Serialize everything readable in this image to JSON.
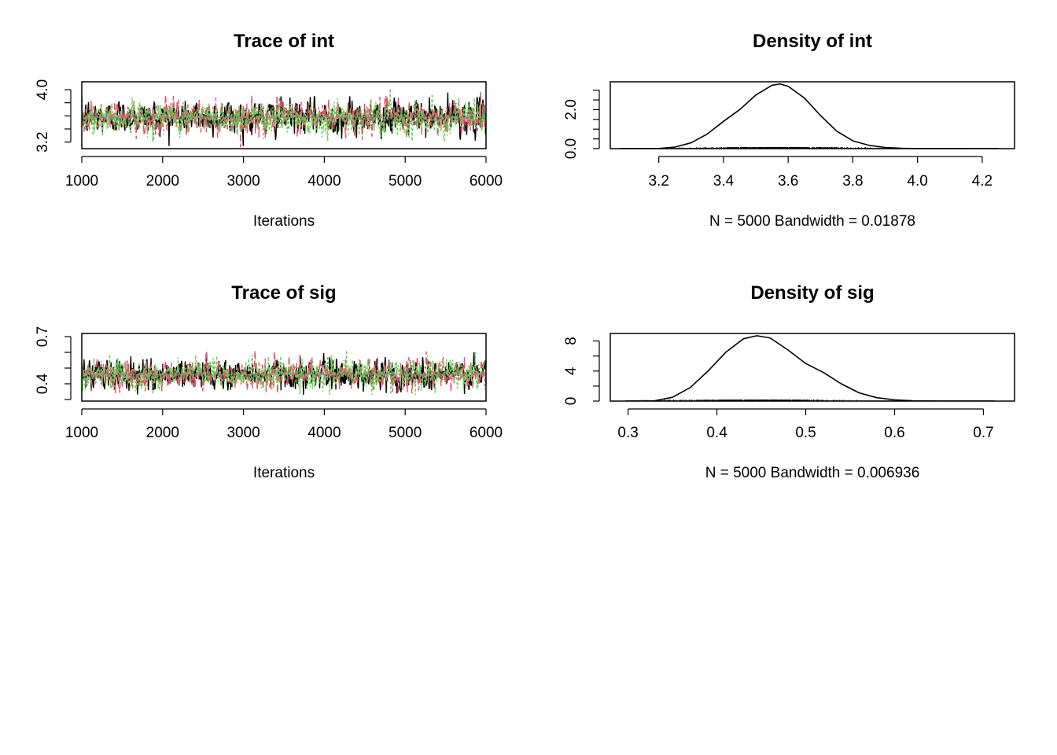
{
  "colors": {
    "chain1": "#000000",
    "chain2": "#DF536B",
    "chain3": "#61D04F",
    "rug": "#000000",
    "rug_range": "#808080"
  },
  "chart_data": [
    {
      "type": "line",
      "title": "Trace of int",
      "xlabel": "Iterations",
      "ylabel": "",
      "xlim": [
        1000,
        6000
      ],
      "ylim": [
        3.1,
        4.12
      ],
      "x_ticks": [
        1000,
        2000,
        3000,
        4000,
        5000,
        6000
      ],
      "x_tick_labels": [
        "1000",
        "2000",
        "3000",
        "4000",
        "5000",
        "6000"
      ],
      "y_ticks": [
        3.2,
        3.4,
        3.6,
        3.8,
        4.0
      ],
      "y_tick_labels": [
        "3.2",
        "",
        "",
        "",
        "4.0"
      ],
      "n_iterations": 5000,
      "chains": 3,
      "series": [
        {
          "x_start": 1000,
          "x_end": 6000,
          "mean": 3.58,
          "sd": 0.12,
          "min": 3.14,
          "max": 4.1
        },
        {
          "x_start": 1000,
          "x_end": 6000,
          "mean": 3.58,
          "sd": 0.12,
          "min": 3.12,
          "max": 3.98
        },
        {
          "x_start": 1000,
          "x_end": 6000,
          "mean": 3.58,
          "sd": 0.12,
          "min": 3.2,
          "max": 4.12
        }
      ]
    },
    {
      "type": "line",
      "title": "Density of int",
      "xlabel": "N = 5000   Bandwidth = 0.01878",
      "ylabel": "",
      "xlim": [
        3.05,
        4.3
      ],
      "ylim": [
        0,
        3.43
      ],
      "x_ticks": [
        3.2,
        3.4,
        3.6,
        3.8,
        4.0,
        4.2
      ],
      "x_tick_labels": [
        "3.2",
        "3.4",
        "3.6",
        "3.8",
        "4.0",
        "4.2"
      ],
      "y_ticks": [
        0,
        0.5,
        1.0,
        1.5,
        2.0,
        2.5,
        3.0
      ],
      "y_tick_labels": [
        "0.0",
        "",
        "",
        "",
        "2.0",
        "",
        ""
      ],
      "rug_range": [
        3.08,
        4.25
      ],
      "x": [
        3.08,
        3.2,
        3.25,
        3.3,
        3.35,
        3.4,
        3.45,
        3.5,
        3.55,
        3.575,
        3.6,
        3.65,
        3.7,
        3.75,
        3.8,
        3.85,
        3.9,
        3.95,
        4.0,
        4.25
      ],
      "y": [
        0.0,
        0.01,
        0.08,
        0.3,
        0.75,
        1.4,
        2.0,
        2.75,
        3.25,
        3.32,
        3.2,
        2.6,
        1.7,
        0.9,
        0.4,
        0.17,
        0.06,
        0.02,
        0.005,
        0.0
      ]
    },
    {
      "type": "line",
      "title": "Trace of sig",
      "xlabel": "Iterations",
      "ylabel": "",
      "xlim": [
        1000,
        6000
      ],
      "ylim": [
        0.29,
        0.72
      ],
      "x_ticks": [
        1000,
        2000,
        3000,
        4000,
        5000,
        6000
      ],
      "x_tick_labels": [
        "1000",
        "2000",
        "3000",
        "4000",
        "5000",
        "6000"
      ],
      "y_ticks": [
        0.3,
        0.4,
        0.5,
        0.6,
        0.7
      ],
      "y_tick_labels": [
        "",
        "0.4",
        "",
        "",
        "0.7"
      ],
      "n_iterations": 5000,
      "chains": 3,
      "series": [
        {
          "x_start": 1000,
          "x_end": 6000,
          "mean": 0.46,
          "sd": 0.045,
          "min": 0.33,
          "max": 0.66
        },
        {
          "x_start": 1000,
          "x_end": 6000,
          "mean": 0.46,
          "sd": 0.045,
          "min": 0.34,
          "max": 0.67
        },
        {
          "x_start": 1000,
          "x_end": 6000,
          "mean": 0.46,
          "sd": 0.045,
          "min": 0.33,
          "max": 0.69
        }
      ]
    },
    {
      "type": "line",
      "title": "Density of sig",
      "xlabel": "N = 5000   Bandwidth = 0.006936",
      "ylabel": "",
      "xlim": [
        0.28,
        0.735
      ],
      "ylim": [
        0,
        9.0
      ],
      "x_ticks": [
        0.3,
        0.4,
        0.5,
        0.6,
        0.7
      ],
      "x_tick_labels": [
        "0.3",
        "0.4",
        "0.5",
        "0.6",
        "0.7"
      ],
      "y_ticks": [
        0,
        2,
        4,
        6,
        8
      ],
      "y_tick_labels": [
        "0",
        "",
        "4",
        "",
        "8"
      ],
      "rug_range": [
        0.297,
        0.713
      ],
      "x": [
        0.297,
        0.33,
        0.35,
        0.37,
        0.39,
        0.41,
        0.43,
        0.445,
        0.46,
        0.48,
        0.5,
        0.52,
        0.54,
        0.56,
        0.58,
        0.6,
        0.62,
        0.65,
        0.713
      ],
      "y": [
        0.0,
        0.05,
        0.5,
        1.8,
        4.0,
        6.5,
        8.3,
        8.7,
        8.4,
        6.8,
        5.0,
        3.8,
        2.3,
        1.1,
        0.45,
        0.17,
        0.05,
        0.01,
        0.0
      ]
    }
  ]
}
